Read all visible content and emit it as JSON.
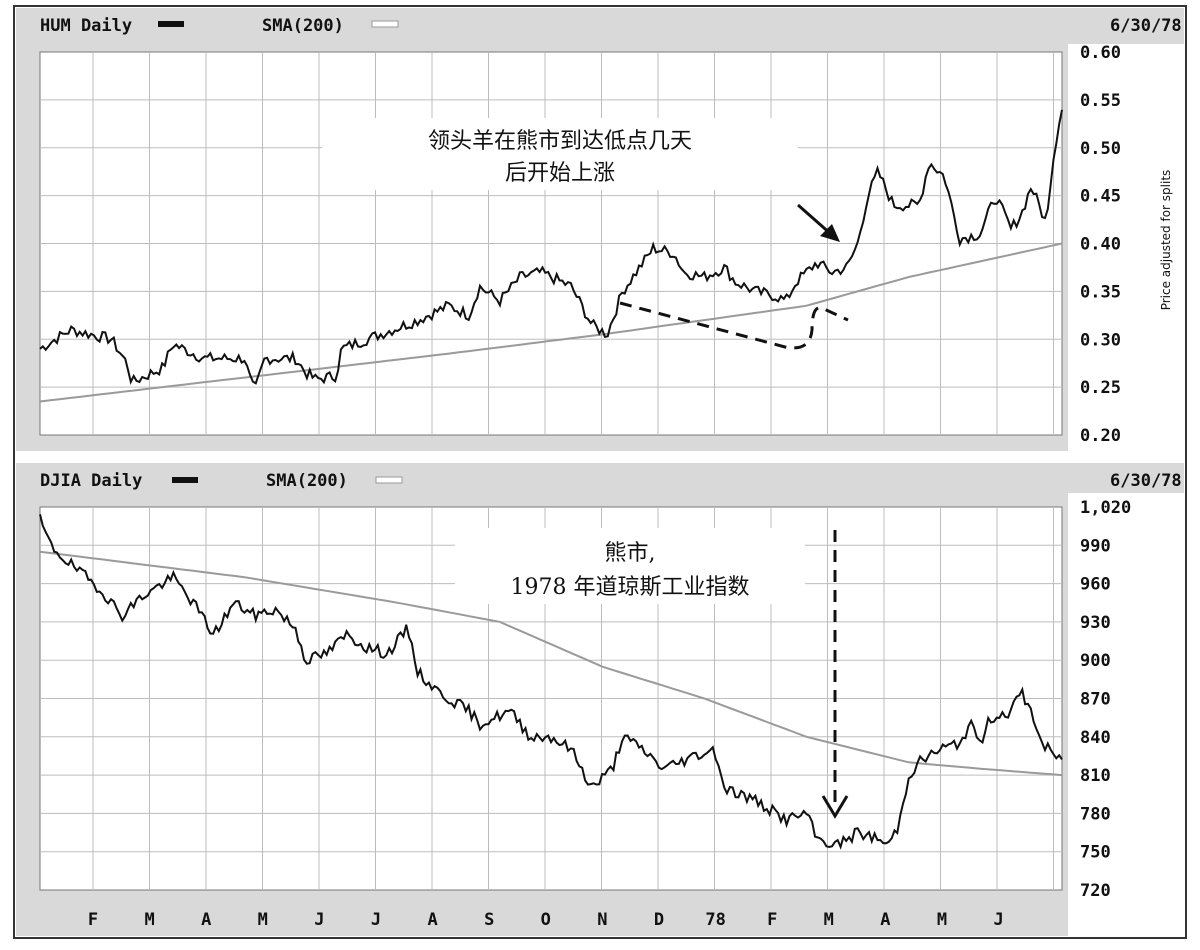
{
  "chart_data": [
    {
      "type": "line",
      "header_left": "HUM Daily",
      "header_sma": "SMA(200)",
      "header_date": "6/30/78",
      "ylabel": "Price adjusted for splits",
      "ylim": [
        0.2,
        0.6
      ],
      "y_ticks": [
        "0.60",
        "0.55",
        "0.50",
        "0.45",
        "0.40",
        "0.35",
        "0.30",
        "0.25",
        "0.20"
      ],
      "annotation": [
        "领头羊在熊市到达低点几天",
        "后开始上涨"
      ],
      "series": [
        {
          "name": "HUM Daily",
          "anchors": [
            [
              0.0,
              0.29
            ],
            [
              0.03,
              0.31
            ],
            [
              0.07,
              0.3
            ],
            [
              0.085,
              0.275
            ],
            [
              0.09,
              0.255
            ],
            [
              0.12,
              0.27
            ],
            [
              0.13,
              0.295
            ],
            [
              0.16,
              0.28
            ],
            [
              0.2,
              0.28
            ],
            [
              0.205,
              0.26
            ],
            [
              0.21,
              0.245
            ],
            [
              0.22,
              0.28
            ],
            [
              0.25,
              0.28
            ],
            [
              0.26,
              0.265
            ],
            [
              0.27,
              0.258
            ],
            [
              0.29,
              0.262
            ],
            [
              0.295,
              0.29
            ],
            [
              0.32,
              0.3
            ],
            [
              0.37,
              0.32
            ],
            [
              0.4,
              0.335
            ],
            [
              0.42,
              0.325
            ],
            [
              0.43,
              0.355
            ],
            [
              0.45,
              0.34
            ],
            [
              0.47,
              0.365
            ],
            [
              0.49,
              0.37
            ],
            [
              0.52,
              0.355
            ],
            [
              0.53,
              0.335
            ],
            [
              0.54,
              0.315
            ],
            [
              0.555,
              0.305
            ],
            [
              0.56,
              0.32
            ],
            [
              0.57,
              0.35
            ],
            [
              0.6,
              0.395
            ],
            [
              0.62,
              0.39
            ],
            [
              0.63,
              0.37
            ],
            [
              0.65,
              0.365
            ],
            [
              0.67,
              0.375
            ],
            [
              0.68,
              0.36
            ],
            [
              0.7,
              0.35
            ],
            [
              0.72,
              0.345
            ],
            [
              0.73,
              0.34
            ],
            [
              0.74,
              0.36
            ],
            [
              0.76,
              0.38
            ],
            [
              0.775,
              0.37
            ],
            [
              0.79,
              0.375
            ],
            [
              0.8,
              0.4
            ],
            [
              0.81,
              0.45
            ],
            [
              0.82,
              0.475
            ],
            [
              0.835,
              0.44
            ],
            [
              0.86,
              0.44
            ],
            [
              0.87,
              0.485
            ],
            [
              0.885,
              0.47
            ],
            [
              0.9,
              0.405
            ],
            [
              0.92,
              0.41
            ],
            [
              0.935,
              0.45
            ],
            [
              0.95,
              0.415
            ],
            [
              0.96,
              0.43
            ],
            [
              0.97,
              0.46
            ],
            [
              0.985,
              0.42
            ],
            [
              0.99,
              0.48
            ],
            [
              1.0,
              0.545
            ]
          ]
        },
        {
          "name": "SMA(200)",
          "anchors": [
            [
              0.0,
              0.235
            ],
            [
              0.2,
              0.26
            ],
            [
              0.4,
              0.285
            ],
            [
              0.55,
              0.305
            ],
            [
              0.65,
              0.32
            ],
            [
              0.75,
              0.335
            ],
            [
              0.85,
              0.365
            ],
            [
              1.0,
              0.4
            ]
          ]
        }
      ]
    },
    {
      "type": "line",
      "header_left": "DJIA Daily",
      "header_sma": "SMA(200)",
      "header_date": "6/30/78",
      "ylim": [
        720,
        1020
      ],
      "y_ticks": [
        "1,020",
        "990",
        "960",
        "930",
        "900",
        "870",
        "840",
        "810",
        "780",
        "750",
        "720"
      ],
      "annotation": [
        "熊市,",
        "1978 年道琼斯工业指数"
      ],
      "x_categories": [
        "F",
        "M",
        "A",
        "M",
        "J",
        "J",
        "A",
        "S",
        "O",
        "N",
        "D",
        "78",
        "F",
        "M",
        "A",
        "M",
        "J"
      ],
      "series": [
        {
          "name": "DJIA Daily",
          "anchors": [
            [
              0.0,
              1010
            ],
            [
              0.01,
              990
            ],
            [
              0.03,
              975
            ],
            [
              0.06,
              955
            ],
            [
              0.08,
              935
            ],
            [
              0.1,
              950
            ],
            [
              0.13,
              965
            ],
            [
              0.15,
              945
            ],
            [
              0.17,
              920
            ],
            [
              0.19,
              945
            ],
            [
              0.21,
              935
            ],
            [
              0.23,
              940
            ],
            [
              0.25,
              925
            ],
            [
              0.26,
              900
            ],
            [
              0.28,
              905
            ],
            [
              0.3,
              920
            ],
            [
              0.32,
              910
            ],
            [
              0.34,
              905
            ],
            [
              0.36,
              925
            ],
            [
              0.37,
              890
            ],
            [
              0.39,
              875
            ],
            [
              0.42,
              860
            ],
            [
              0.43,
              850
            ],
            [
              0.46,
              860
            ],
            [
              0.48,
              840
            ],
            [
              0.5,
              840
            ],
            [
              0.52,
              830
            ],
            [
              0.54,
              800
            ],
            [
              0.56,
              815
            ],
            [
              0.57,
              840
            ],
            [
              0.59,
              830
            ],
            [
              0.61,
              815
            ],
            [
              0.64,
              825
            ],
            [
              0.66,
              830
            ],
            [
              0.67,
              800
            ],
            [
              0.7,
              790
            ],
            [
              0.72,
              780
            ],
            [
              0.73,
              775
            ],
            [
              0.75,
              780
            ],
            [
              0.76,
              760
            ],
            [
              0.78,
              755
            ],
            [
              0.8,
              765
            ],
            [
              0.82,
              760
            ],
            [
              0.83,
              755
            ],
            [
              0.84,
              770
            ],
            [
              0.85,
              810
            ],
            [
              0.86,
              820
            ],
            [
              0.88,
              830
            ],
            [
              0.9,
              835
            ],
            [
              0.91,
              850
            ],
            [
              0.92,
              835
            ],
            [
              0.93,
              855
            ],
            [
              0.95,
              860
            ],
            [
              0.96,
              875
            ],
            [
              0.97,
              860
            ],
            [
              0.98,
              835
            ],
            [
              1.0,
              820
            ]
          ]
        },
        {
          "name": "SMA(200)",
          "anchors": [
            [
              0.0,
              985
            ],
            [
              0.2,
              965
            ],
            [
              0.35,
              945
            ],
            [
              0.45,
              930
            ],
            [
              0.55,
              895
            ],
            [
              0.65,
              870
            ],
            [
              0.75,
              840
            ],
            [
              0.85,
              820
            ],
            [
              0.92,
              815
            ],
            [
              1.0,
              810
            ]
          ]
        }
      ]
    }
  ]
}
